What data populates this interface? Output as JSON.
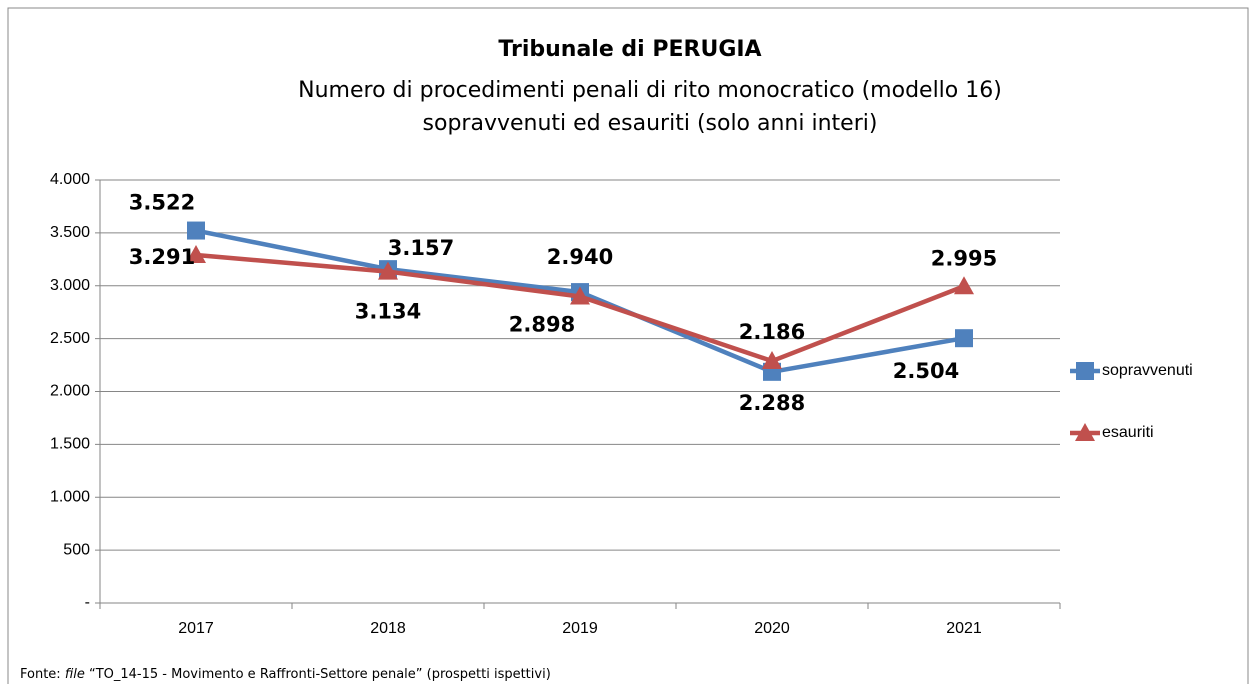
{
  "chart_data": {
    "type": "line",
    "title": "Tribunale di PERUGIA",
    "subtitle": [
      "Numero di procedimenti penali di rito monocratico (modello 16)",
      "sopravvenuti ed esauriti (solo anni interi)"
    ],
    "categories": [
      "2017",
      "2018",
      "2019",
      "2020",
      "2021"
    ],
    "series": [
      {
        "name": "sopravvenuti",
        "color": "#4f81bd",
        "label_color": "#1f72bd",
        "marker": "square",
        "values": [
          3522,
          3157,
          2940,
          2186,
          2504
        ],
        "value_labels": [
          "3.522",
          "3.157",
          "2.940",
          "2.186",
          "2.504"
        ]
      },
      {
        "name": "esauriti",
        "color": "#c0504d",
        "label_color": "#c00000",
        "marker": "triangle",
        "values": [
          3291,
          3134,
          2898,
          2288,
          2995
        ],
        "value_labels": [
          "3.291",
          "3.134",
          "2.898",
          "2.288",
          "2.995"
        ]
      }
    ],
    "ylim": [
      0,
      4000
    ],
    "yticks": [
      {
        "value": 0,
        "label": "-"
      },
      500,
      {
        "value": 1000,
        "label": "1.000"
      },
      {
        "value": 1500,
        "label": "1.500"
      },
      {
        "value": 2000,
        "label": "2.000"
      },
      {
        "value": 2500,
        "label": "2.500"
      },
      {
        "value": 3000,
        "label": "3.000"
      },
      {
        "value": 3500,
        "label": "3.500"
      },
      {
        "value": 4000,
        "label": "4.000"
      }
    ],
    "grid": true,
    "legend": "right",
    "source": [
      "Fonte:",
      "file",
      "“TO_14-15 - Movimento e Raffronti-Settore penale” (prospetti ispettivi)"
    ]
  }
}
